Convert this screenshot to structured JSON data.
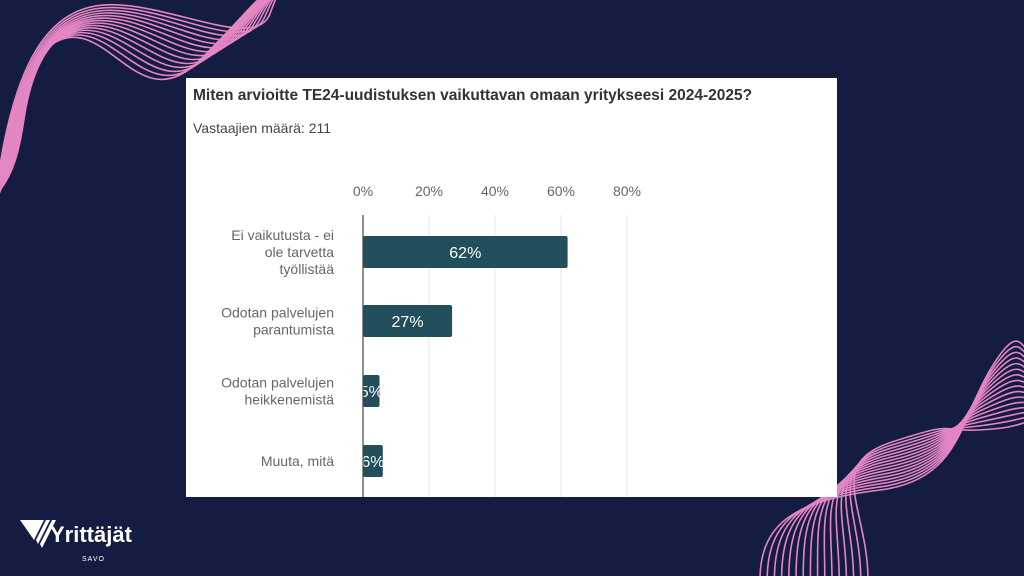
{
  "branding": {
    "logo_text": "Yrittäjät",
    "logo_subtext": "SAVO",
    "colors": {
      "background": "#141c41",
      "accent_lines": "#e486c4",
      "bar": "#234e5c"
    }
  },
  "chart_data": {
    "type": "bar",
    "orientation": "horizontal",
    "title": "Miten arvioitte TE24-uudistuksen vaikuttavan omaan yritykseesi 2024-2025?",
    "subtitle": "Vastaajien määrä: 211",
    "categories": [
      [
        "Ei vaikutusta - ei",
        "ole tarvetta",
        "työllistää"
      ],
      [
        "Odotan palvelujen",
        "parantumista"
      ],
      [
        "Odotan palvelujen",
        "heikkenemistä"
      ],
      [
        "Muuta, mitä"
      ]
    ],
    "values": [
      62,
      27,
      5,
      6
    ],
    "value_labels": [
      "62%",
      "27%",
      "5%",
      "6%"
    ],
    "xlabel": "",
    "ylabel": "",
    "xlim": [
      0,
      80
    ],
    "xticks": [
      0,
      20,
      40,
      60,
      80
    ],
    "xtick_labels": [
      "0%",
      "20%",
      "40%",
      "60%",
      "80%"
    ],
    "x_axis_position": "top",
    "grid": true,
    "legend": "none"
  }
}
